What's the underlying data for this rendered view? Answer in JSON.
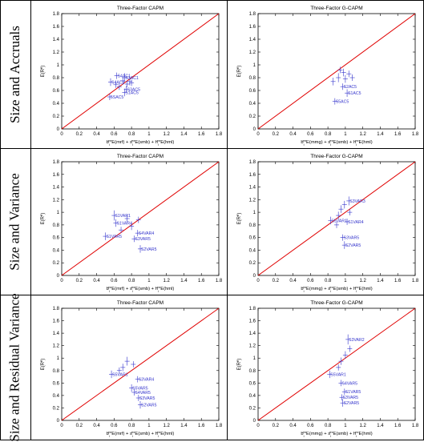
{
  "rows": [
    {
      "label": "Size and Accruals"
    },
    {
      "label": "Size and Variance"
    },
    {
      "label": "Size and Residual Variance"
    }
  ],
  "axis_common": {
    "xlim": [
      0,
      1.8
    ],
    "ylim": [
      0,
      1.8
    ],
    "xticks": [
      "0",
      "0.2",
      "0.4",
      "0.6",
      "0.8",
      "1",
      "1.2",
      "1.4",
      "1.6",
      "1.8"
    ],
    "yticks": [
      "0",
      "0.2",
      "0.4",
      "0.6",
      "0.8",
      "1",
      "1.2",
      "1.4",
      "1.6",
      "1.8"
    ],
    "ylabel": "E(R^e)",
    "line_color": "#e00000",
    "point_color": "#3333cc"
  },
  "chart_data": [
    {
      "type": "scatter",
      "row": 0,
      "col": 0,
      "title": "Three-Factor CAPM",
      "xlabel": "b_i^e*E(mrf) + s_i^e*E(smb) + h_i^e*E(hml)",
      "points": [
        {
          "x": 0.55,
          "y": 0.5,
          "e": 0.05,
          "label": "5SAC5"
        },
        {
          "x": 0.72,
          "y": 0.57,
          "e": 0.06,
          "label": "S1AC5"
        },
        {
          "x": 0.74,
          "y": 0.62,
          "e": 0.05,
          "label": "S3AC5"
        },
        {
          "x": 0.56,
          "y": 0.73,
          "e": 0.06,
          "label": "S4AC1"
        },
        {
          "x": 0.63,
          "y": 0.83,
          "e": 0.05,
          "label": "S4AC1"
        },
        {
          "x": 0.72,
          "y": 0.8,
          "e": 0.07,
          "label": "S3AC1"
        },
        {
          "x": 0.62,
          "y": 0.69,
          "e": 0.05,
          "label": ""
        },
        {
          "x": 0.7,
          "y": 0.75,
          "e": 0.06,
          "label": ""
        },
        {
          "x": 0.78,
          "y": 0.74,
          "e": 0.06,
          "label": ""
        },
        {
          "x": 0.66,
          "y": 0.66,
          "e": 0.05,
          "label": ""
        },
        {
          "x": 0.75,
          "y": 0.7,
          "e": 0.05,
          "label": ""
        },
        {
          "x": 0.8,
          "y": 0.72,
          "e": 0.05,
          "label": ""
        }
      ]
    },
    {
      "type": "scatter",
      "row": 0,
      "col": 1,
      "title": "Three-Factor G-CAPM",
      "xlabel": "b_i^e*E(mmg) + s_i^e*E(smb) + h_i^e*E(hml)",
      "points": [
        {
          "x": 0.88,
          "y": 0.43,
          "e": 0.05,
          "label": "S5AC5"
        },
        {
          "x": 1.02,
          "y": 0.56,
          "e": 0.06,
          "label": "S1AC5"
        },
        {
          "x": 0.97,
          "y": 0.66,
          "e": 0.05,
          "label": "S2AC5"
        },
        {
          "x": 0.92,
          "y": 0.8,
          "e": 0.07,
          "label": ""
        },
        {
          "x": 0.98,
          "y": 0.88,
          "e": 0.06,
          "label": ""
        },
        {
          "x": 1.04,
          "y": 0.86,
          "e": 0.05,
          "label": ""
        },
        {
          "x": 0.86,
          "y": 0.74,
          "e": 0.06,
          "label": ""
        },
        {
          "x": 1.0,
          "y": 0.78,
          "e": 0.06,
          "label": ""
        },
        {
          "x": 0.94,
          "y": 0.92,
          "e": 0.05,
          "label": ""
        },
        {
          "x": 1.08,
          "y": 0.8,
          "e": 0.05,
          "label": ""
        }
      ]
    },
    {
      "type": "scatter",
      "row": 1,
      "col": 0,
      "title": "Three-Factor CAPM",
      "xlabel": "b_i^e*E(mrf) + s_i^e*E(smb) + h_i^e*E(hml)",
      "points": [
        {
          "x": 0.9,
          "y": 0.42,
          "e": 0.06,
          "label": "S2VAR5"
        },
        {
          "x": 0.83,
          "y": 0.58,
          "e": 0.05,
          "label": "S3VAR5"
        },
        {
          "x": 0.87,
          "y": 0.67,
          "e": 0.05,
          "label": "S4VAR4"
        },
        {
          "x": 0.5,
          "y": 0.62,
          "e": 0.06,
          "label": "S1VAR5"
        },
        {
          "x": 0.6,
          "y": 0.95,
          "e": 0.08,
          "label": "S1VAR1"
        },
        {
          "x": 0.62,
          "y": 0.83,
          "e": 0.06,
          "label": "S1VAR4"
        },
        {
          "x": 0.75,
          "y": 0.9,
          "e": 0.06,
          "label": ""
        },
        {
          "x": 0.8,
          "y": 0.78,
          "e": 0.06,
          "label": ""
        },
        {
          "x": 0.68,
          "y": 0.72,
          "e": 0.05,
          "label": ""
        },
        {
          "x": 0.88,
          "y": 0.88,
          "e": 0.05,
          "label": ""
        }
      ]
    },
    {
      "type": "scatter",
      "row": 1,
      "col": 1,
      "title": "Three-Factor G-CAPM",
      "xlabel": "b_i^e*E(mmg) + s_i^e*E(smb) + h_i^e*E(hml)",
      "points": [
        {
          "x": 0.99,
          "y": 0.48,
          "e": 0.06,
          "label": "S2VAR5"
        },
        {
          "x": 0.97,
          "y": 0.6,
          "e": 0.05,
          "label": "S3VAR5"
        },
        {
          "x": 1.02,
          "y": 0.85,
          "e": 0.05,
          "label": "S1VAR4"
        },
        {
          "x": 0.83,
          "y": 0.87,
          "e": 0.06,
          "label": "S5VAR1"
        },
        {
          "x": 1.04,
          "y": 1.18,
          "e": 0.07,
          "label": "S3VAR3"
        },
        {
          "x": 0.95,
          "y": 1.05,
          "e": 0.06,
          "label": ""
        },
        {
          "x": 0.92,
          "y": 0.95,
          "e": 0.06,
          "label": ""
        },
        {
          "x": 1.05,
          "y": 1.0,
          "e": 0.05,
          "label": ""
        },
        {
          "x": 0.9,
          "y": 0.8,
          "e": 0.05,
          "label": ""
        },
        {
          "x": 0.99,
          "y": 1.12,
          "e": 0.06,
          "label": ""
        }
      ]
    },
    {
      "type": "scatter",
      "row": 2,
      "col": 0,
      "title": "Three-Factor CAPM",
      "xlabel": "b_i^e*E(mrf) + s_i^e*E(smb) + h_i^e*E(hml)",
      "points": [
        {
          "x": 0.9,
          "y": 0.25,
          "e": 0.06,
          "label": "S2VAR5"
        },
        {
          "x": 0.88,
          "y": 0.36,
          "e": 0.05,
          "label": "S3VAR5"
        },
        {
          "x": 0.83,
          "y": 0.45,
          "e": 0.05,
          "label": "S4VAR5"
        },
        {
          "x": 0.8,
          "y": 0.52,
          "e": 0.06,
          "label": "S5VAR5"
        },
        {
          "x": 0.87,
          "y": 0.66,
          "e": 0.05,
          "label": "S3VAR4"
        },
        {
          "x": 0.57,
          "y": 0.74,
          "e": 0.06,
          "label": "S5VAR1"
        },
        {
          "x": 0.75,
          "y": 0.95,
          "e": 0.07,
          "label": ""
        },
        {
          "x": 0.7,
          "y": 0.85,
          "e": 0.06,
          "label": ""
        },
        {
          "x": 0.82,
          "y": 0.9,
          "e": 0.05,
          "label": ""
        },
        {
          "x": 0.66,
          "y": 0.8,
          "e": 0.05,
          "label": ""
        }
      ]
    },
    {
      "type": "scatter",
      "row": 2,
      "col": 1,
      "title": "Three-Factor G-CAPM",
      "xlabel": "b_i^e*E(mmg) + s_i^e*E(smb) + h_i^e*E(hml)",
      "points": [
        {
          "x": 0.97,
          "y": 0.28,
          "e": 0.06,
          "label": "S2VAR5"
        },
        {
          "x": 0.96,
          "y": 0.37,
          "e": 0.05,
          "label": "S3VAR5"
        },
        {
          "x": 0.99,
          "y": 0.46,
          "e": 0.05,
          "label": "S1VAR5"
        },
        {
          "x": 0.95,
          "y": 0.6,
          "e": 0.05,
          "label": "S4VAR5"
        },
        {
          "x": 0.82,
          "y": 0.74,
          "e": 0.06,
          "label": "S5VAR1"
        },
        {
          "x": 1.03,
          "y": 1.3,
          "e": 0.08,
          "label": "S3VAR2"
        },
        {
          "x": 1.0,
          "y": 1.05,
          "e": 0.06,
          "label": ""
        },
        {
          "x": 0.95,
          "y": 0.95,
          "e": 0.06,
          "label": ""
        },
        {
          "x": 1.05,
          "y": 1.15,
          "e": 0.05,
          "label": ""
        },
        {
          "x": 0.92,
          "y": 0.85,
          "e": 0.05,
          "label": ""
        }
      ]
    }
  ]
}
